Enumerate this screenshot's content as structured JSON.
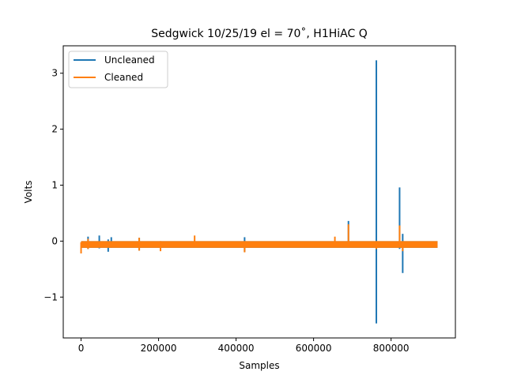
{
  "chart_data": {
    "type": "line",
    "title": "Sedgwick 10/25/19 el = 70˚, H1HiAC Q",
    "xlabel": "Samples",
    "ylabel": "Volts",
    "xlim": [
      -46000,
      966000
    ],
    "ylim": [
      -1.73,
      3.49
    ],
    "x_ticks": [
      0,
      200000,
      400000,
      600000,
      800000
    ],
    "x_tick_labels": [
      "0",
      "200000",
      "400000",
      "600000",
      "800000"
    ],
    "y_ticks": [
      -1,
      0,
      1,
      2,
      3
    ],
    "y_tick_labels": [
      "−1",
      "0",
      "1",
      "2",
      "3"
    ],
    "grid": false,
    "legend_position": "upper-left",
    "series": [
      {
        "name": "Uncleaned",
        "color": "#1f77b4",
        "band": [
          [
            0,
            -0.12,
            0.0
          ],
          [
            920000,
            -0.12,
            0.0
          ]
        ],
        "spikes": [
          [
            18000,
            -0.14,
            0.08
          ],
          [
            47000,
            -0.13,
            0.1
          ],
          [
            70000,
            -0.19,
            0.03
          ],
          [
            78000,
            -0.12,
            0.07
          ],
          [
            150000,
            -0.17,
            0.06
          ],
          [
            422000,
            -0.19,
            0.07
          ],
          [
            690000,
            -0.12,
            0.36
          ],
          [
            762000,
            -1.47,
            3.23
          ],
          [
            822000,
            -0.14,
            0.96
          ],
          [
            830000,
            -0.57,
            0.13
          ]
        ]
      },
      {
        "name": "Cleaned",
        "color": "#ff7f0e",
        "band": [
          [
            0,
            -0.12,
            0.0
          ],
          [
            920000,
            -0.12,
            0.0
          ]
        ],
        "spikes": [
          [
            0,
            -0.22,
            -0.02
          ],
          [
            18000,
            -0.14,
            0.04
          ],
          [
            150000,
            -0.17,
            0.06
          ],
          [
            205000,
            -0.18,
            0.0
          ],
          [
            293000,
            -0.1,
            0.1
          ],
          [
            422000,
            -0.2,
            0.0
          ],
          [
            655000,
            -0.1,
            0.08
          ],
          [
            690000,
            -0.12,
            0.3
          ],
          [
            762000,
            -0.14,
            0.0
          ],
          [
            822000,
            -0.1,
            0.28
          ],
          [
            830000,
            -0.18,
            0.0
          ]
        ]
      }
    ]
  }
}
